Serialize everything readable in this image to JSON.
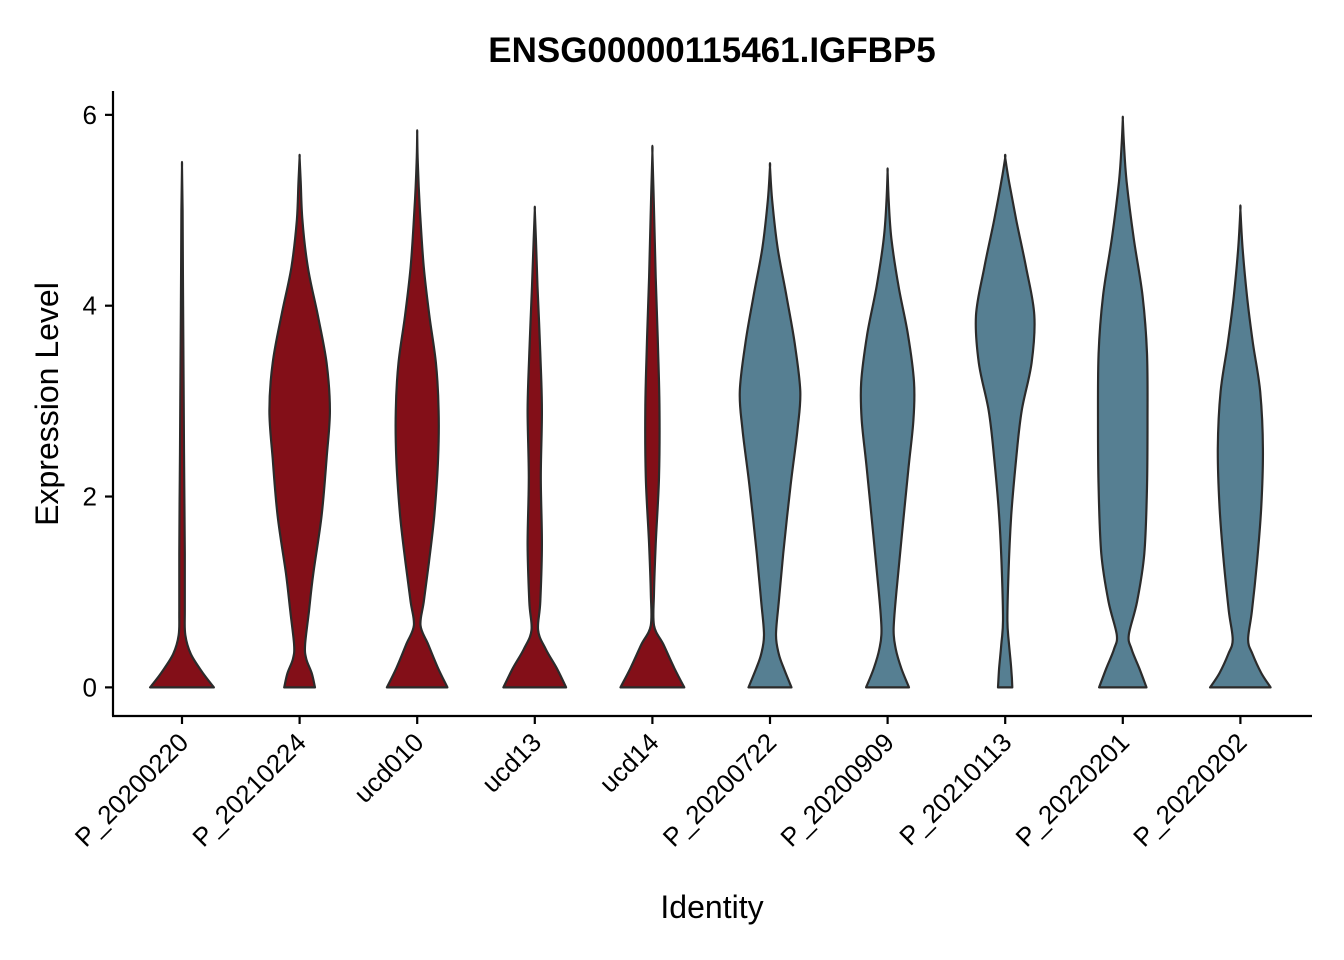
{
  "chart_data": {
    "type": "violin",
    "title": "ENSG00000115461.IGFBP5",
    "xlabel": "Identity",
    "ylabel": "Expression Level",
    "ylim": [
      -0.3,
      6.25
    ],
    "yticks": [
      0,
      2,
      4,
      6
    ],
    "grid": false,
    "legend": "none",
    "colors": {
      "red_group": "#830F18",
      "blue_group": "#567F92",
      "outline": "#2b2b2b"
    },
    "categories": [
      "P_20200220",
      "P_20210224",
      "ucd010",
      "ucd13",
      "ucd14",
      "P_20200722",
      "P_20200909",
      "P_20210113",
      "P_20220201",
      "P_20220202"
    ],
    "series": [
      {
        "category": "P_20200220",
        "color": "#830F18",
        "max": 5.45,
        "profile": [
          [
            0,
            0.58
          ],
          [
            0.15,
            0.38
          ],
          [
            0.35,
            0.16
          ],
          [
            0.55,
            0.06
          ],
          [
            0.8,
            0.05
          ],
          [
            1.4,
            0.05
          ],
          [
            2.2,
            0.04
          ],
          [
            3.0,
            0.03
          ],
          [
            4.0,
            0.02
          ],
          [
            5.0,
            0.01
          ],
          [
            5.45,
            0
          ]
        ]
      },
      {
        "category": "P_20210224",
        "color": "#830F18",
        "max": 5.55,
        "profile": [
          [
            0,
            0.28
          ],
          [
            0.15,
            0.22
          ],
          [
            0.3,
            0.12
          ],
          [
            0.45,
            0.1
          ],
          [
            0.8,
            0.17
          ],
          [
            1.2,
            0.25
          ],
          [
            1.8,
            0.4
          ],
          [
            2.4,
            0.49
          ],
          [
            2.9,
            0.55
          ],
          [
            3.4,
            0.49
          ],
          [
            3.9,
            0.33
          ],
          [
            4.4,
            0.15
          ],
          [
            4.9,
            0.05
          ],
          [
            5.3,
            0.02
          ],
          [
            5.55,
            0
          ]
        ]
      },
      {
        "category": "ucd010",
        "color": "#830F18",
        "max": 5.8,
        "profile": [
          [
            0,
            0.55
          ],
          [
            0.2,
            0.38
          ],
          [
            0.45,
            0.2
          ],
          [
            0.65,
            0.06
          ],
          [
            0.9,
            0.12
          ],
          [
            1.3,
            0.21
          ],
          [
            1.8,
            0.31
          ],
          [
            2.4,
            0.38
          ],
          [
            2.9,
            0.39
          ],
          [
            3.4,
            0.34
          ],
          [
            3.9,
            0.22
          ],
          [
            4.4,
            0.12
          ],
          [
            5.0,
            0.05
          ],
          [
            5.5,
            0.01
          ],
          [
            5.8,
            0
          ]
        ]
      },
      {
        "category": "ucd13",
        "color": "#830F18",
        "max": 5.0,
        "profile": [
          [
            0,
            0.57
          ],
          [
            0.2,
            0.4
          ],
          [
            0.4,
            0.2
          ],
          [
            0.6,
            0.06
          ],
          [
            0.9,
            0.1
          ],
          [
            1.5,
            0.13
          ],
          [
            2.2,
            0.11
          ],
          [
            2.9,
            0.13
          ],
          [
            3.5,
            0.1
          ],
          [
            4.2,
            0.05
          ],
          [
            4.7,
            0.02
          ],
          [
            5.0,
            0
          ]
        ]
      },
      {
        "category": "ucd14",
        "color": "#830F18",
        "max": 5.6,
        "profile": [
          [
            0,
            0.58
          ],
          [
            0.2,
            0.4
          ],
          [
            0.45,
            0.2
          ],
          [
            0.65,
            0.03
          ],
          [
            1.0,
            0.03
          ],
          [
            1.5,
            0.06
          ],
          [
            2.2,
            0.12
          ],
          [
            2.9,
            0.13
          ],
          [
            3.6,
            0.1
          ],
          [
            4.3,
            0.06
          ],
          [
            5.0,
            0.03
          ],
          [
            5.6,
            0
          ]
        ]
      },
      {
        "category": "P_20200722",
        "color": "#567F92",
        "max": 5.45,
        "profile": [
          [
            0,
            0.39
          ],
          [
            0.2,
            0.25
          ],
          [
            0.35,
            0.16
          ],
          [
            0.55,
            0.11
          ],
          [
            0.9,
            0.16
          ],
          [
            1.4,
            0.24
          ],
          [
            2.1,
            0.37
          ],
          [
            2.7,
            0.5
          ],
          [
            3.1,
            0.55
          ],
          [
            3.6,
            0.45
          ],
          [
            4.1,
            0.3
          ],
          [
            4.6,
            0.14
          ],
          [
            5.1,
            0.04
          ],
          [
            5.45,
            0
          ]
        ]
      },
      {
        "category": "P_20200909",
        "color": "#567F92",
        "max": 5.4,
        "profile": [
          [
            0,
            0.39
          ],
          [
            0.2,
            0.25
          ],
          [
            0.4,
            0.15
          ],
          [
            0.6,
            0.11
          ],
          [
            1.0,
            0.16
          ],
          [
            1.6,
            0.26
          ],
          [
            2.3,
            0.38
          ],
          [
            2.8,
            0.47
          ],
          [
            3.2,
            0.48
          ],
          [
            3.7,
            0.37
          ],
          [
            4.2,
            0.2
          ],
          [
            4.7,
            0.07
          ],
          [
            5.1,
            0.02
          ],
          [
            5.4,
            0
          ]
        ]
      },
      {
        "category": "P_20210113",
        "color": "#567F92",
        "max": 5.55,
        "profile": [
          [
            0,
            0.13
          ],
          [
            0.2,
            0.11
          ],
          [
            0.45,
            0.07
          ],
          [
            0.7,
            0.04
          ],
          [
            1.2,
            0.06
          ],
          [
            1.8,
            0.11
          ],
          [
            2.4,
            0.2
          ],
          [
            2.9,
            0.3
          ],
          [
            3.4,
            0.48
          ],
          [
            3.9,
            0.53
          ],
          [
            4.4,
            0.38
          ],
          [
            4.9,
            0.2
          ],
          [
            5.3,
            0.07
          ],
          [
            5.55,
            0
          ]
        ]
      },
      {
        "category": "P_20220201",
        "color": "#567F92",
        "max": 5.95,
        "profile": [
          [
            0,
            0.43
          ],
          [
            0.2,
            0.3
          ],
          [
            0.4,
            0.16
          ],
          [
            0.55,
            0.11
          ],
          [
            0.9,
            0.26
          ],
          [
            1.4,
            0.39
          ],
          [
            2.1,
            0.44
          ],
          [
            2.8,
            0.45
          ],
          [
            3.5,
            0.44
          ],
          [
            4.1,
            0.36
          ],
          [
            4.7,
            0.2
          ],
          [
            5.3,
            0.07
          ],
          [
            5.7,
            0.02
          ],
          [
            5.95,
            0
          ]
        ]
      },
      {
        "category": "P_20220202",
        "color": "#567F92",
        "max": 5.0,
        "profile": [
          [
            0,
            0.55
          ],
          [
            0.15,
            0.38
          ],
          [
            0.35,
            0.22
          ],
          [
            0.5,
            0.14
          ],
          [
            0.8,
            0.21
          ],
          [
            1.3,
            0.3
          ],
          [
            1.9,
            0.38
          ],
          [
            2.5,
            0.41
          ],
          [
            3.1,
            0.36
          ],
          [
            3.6,
            0.23
          ],
          [
            4.1,
            0.12
          ],
          [
            4.6,
            0.04
          ],
          [
            5.0,
            0
          ]
        ]
      }
    ]
  }
}
